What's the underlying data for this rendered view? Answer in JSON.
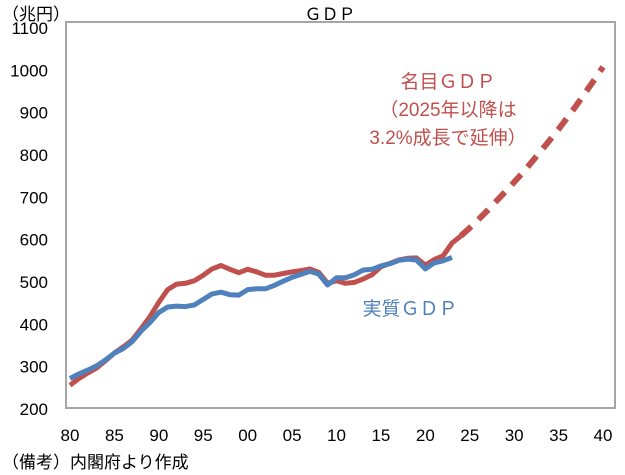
{
  "chart_data": {
    "type": "line",
    "title": "ＧＤＰ",
    "ylabel": "（兆円）",
    "xlabel": "",
    "note": "（備考）内閣府より作成",
    "ylim": [
      200,
      1100
    ],
    "yticks": [
      "200",
      "300",
      "400",
      "500",
      "600",
      "700",
      "800",
      "900",
      "1000",
      "1100"
    ],
    "xlim": [
      1980,
      2040
    ],
    "xticks": [
      "80",
      "85",
      "90",
      "95",
      "00",
      "05",
      "10",
      "15",
      "20",
      "25",
      "30",
      "35",
      "40"
    ],
    "grid": false,
    "series": [
      {
        "name": "名目ＧＤＰ",
        "annotation": [
          "名目ＧＤＰ",
          "（2025年以降は",
          "3.2%成長で延伸）"
        ],
        "color": "#c0504d",
        "x": [
          1980,
          1981,
          1982,
          1983,
          1984,
          1985,
          1986,
          1987,
          1988,
          1989,
          1990,
          1991,
          1992,
          1993,
          1994,
          1995,
          1996,
          1997,
          1998,
          1999,
          2000,
          2001,
          2002,
          2003,
          2004,
          2005,
          2006,
          2007,
          2008,
          2009,
          2010,
          2011,
          2012,
          2013,
          2014,
          2015,
          2016,
          2017,
          2018,
          2019,
          2020,
          2021,
          2022,
          2023,
          2024
        ],
        "values": [
          256,
          272,
          285,
          297,
          314,
          332,
          347,
          363,
          390,
          418,
          452,
          482,
          495,
          497,
          503,
          516,
          531,
          539,
          530,
          522,
          530,
          524,
          516,
          516,
          520,
          524,
          527,
          531,
          523,
          497,
          503,
          497,
          499,
          507,
          517,
          536,
          544,
          552,
          556,
          557,
          540,
          553,
          562,
          592,
          609
        ]
      },
      {
        "name": "名目ＧＤＰ（延伸）",
        "color": "#c0504d",
        "dashed": true,
        "x": [
          2024,
          2025,
          2026,
          2027,
          2028,
          2029,
          2030,
          2031,
          2032,
          2033,
          2034,
          2035,
          2036,
          2037,
          2038,
          2039,
          2040
        ],
        "values": [
          609,
          628,
          648,
          669,
          691,
          713,
          736,
          759,
          784,
          809,
          835,
          861,
          889,
          917,
          947,
          977,
          1008
        ]
      },
      {
        "name": "実質ＧＤＰ",
        "color": "#4f81bd",
        "x": [
          1980,
          1981,
          1982,
          1983,
          1984,
          1985,
          1986,
          1987,
          1988,
          1989,
          1990,
          1991,
          1992,
          1993,
          1994,
          1995,
          1996,
          1997,
          1998,
          1999,
          2000,
          2001,
          2002,
          2003,
          2004,
          2005,
          2006,
          2007,
          2008,
          2009,
          2010,
          2011,
          2012,
          2013,
          2014,
          2015,
          2016,
          2017,
          2018,
          2019,
          2020,
          2021,
          2022,
          2023
        ],
        "values": [
          272,
          283,
          292,
          302,
          316,
          332,
          343,
          359,
          384,
          404,
          428,
          441,
          443,
          442,
          446,
          459,
          472,
          476,
          470,
          469,
          482,
          484,
          484,
          492,
          502,
          511,
          518,
          525,
          519,
          493,
          510,
          510,
          517,
          528,
          530,
          538,
          543,
          551,
          554,
          552,
          531,
          545,
          550,
          558
        ]
      }
    ]
  }
}
